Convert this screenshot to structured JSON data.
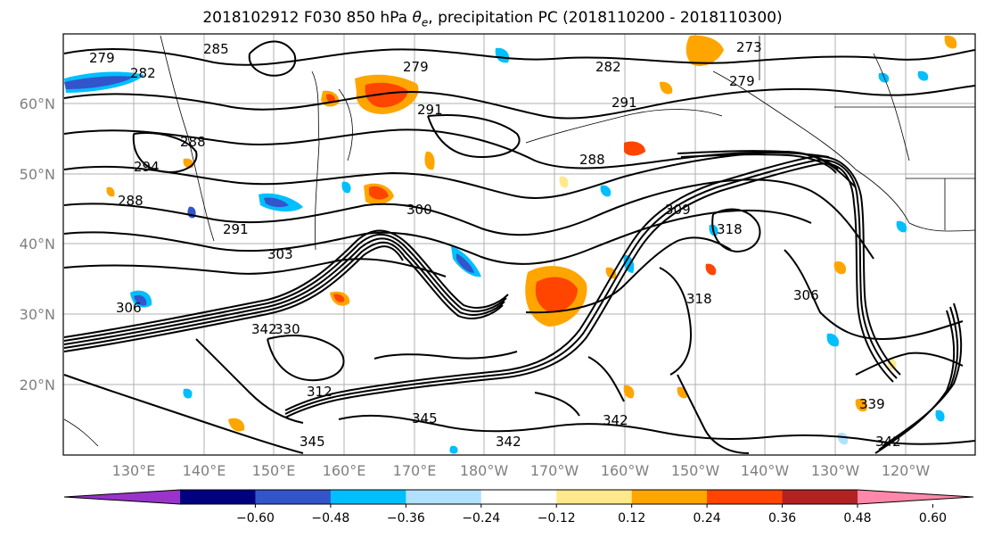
{
  "title_parts": {
    "prefix": "2018102912 F030 850 hPa ",
    "theta": "θ",
    "theta_sub": "e",
    "suffix": ", precipitation PC (2018110200 - 2018110300)"
  },
  "map": {
    "lat_labels": [
      "60°N",
      "50°N",
      "40°N",
      "30°N",
      "20°N"
    ],
    "lat_values": [
      60,
      50,
      40,
      30,
      20
    ],
    "lat_range": [
      10,
      70
    ],
    "lon_labels": [
      "130°E",
      "140°E",
      "150°E",
      "160°E",
      "170°E",
      "180°W",
      "170°W",
      "160°W",
      "150°W",
      "140°W",
      "130°W",
      "120°W"
    ],
    "contour_labels": [
      "279",
      "282",
      "285",
      "279",
      "282",
      "273",
      "279",
      "288",
      "291",
      "291",
      "288",
      "294",
      "288",
      "291",
      "300",
      "309",
      "318",
      "303",
      "306",
      "342",
      "345",
      "342",
      "342",
      "345",
      "342",
      "339",
      "306",
      "312",
      "318",
      "330"
    ]
  },
  "colorbar": {
    "colors": [
      "#9933cc",
      "#000080",
      "#3355cc",
      "#00bfff",
      "#b0e2ff",
      "#ffffff",
      "#ffe98a",
      "#ffa500",
      "#ff4500",
      "#b22222",
      "#ff88aa"
    ],
    "tick_labels": [
      "−0.60",
      "−0.48",
      "−0.36",
      "−0.24",
      "−0.12",
      "0.12",
      "0.24",
      "0.36",
      "0.48",
      "0.60"
    ]
  }
}
